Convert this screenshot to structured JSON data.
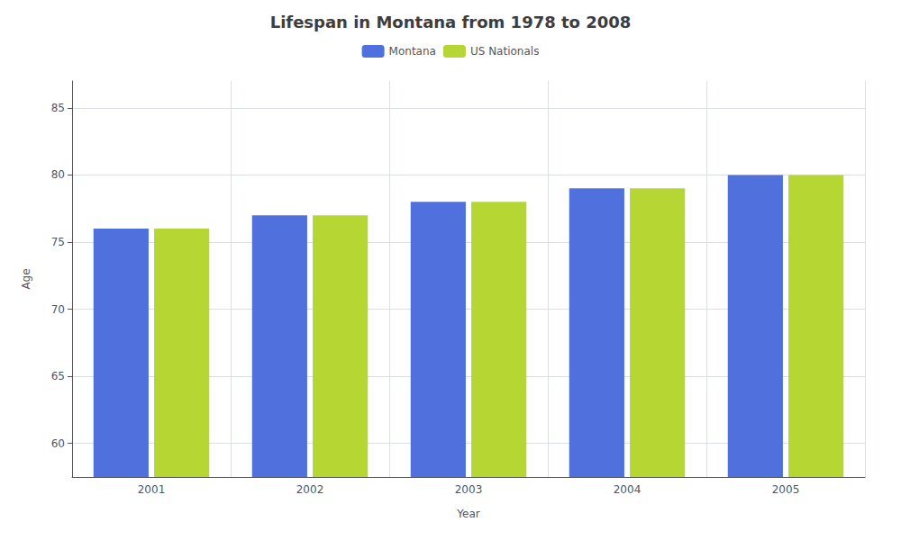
{
  "chart_data": {
    "type": "bar",
    "title": "Lifespan in Montana from 1978 to 2008",
    "xlabel": "Year",
    "ylabel": "Age",
    "categories": [
      "2001",
      "2002",
      "2003",
      "2004",
      "2005"
    ],
    "series": [
      {
        "name": "Montana",
        "values": [
          76,
          77,
          78,
          79,
          80
        ]
      },
      {
        "name": "US Nationals",
        "values": [
          76,
          77,
          78,
          79,
          80
        ]
      }
    ],
    "ylim": [
      57.5,
      87
    ],
    "yticks": [
      60,
      65,
      70,
      75,
      80,
      85
    ],
    "grid": true,
    "legend": "top"
  }
}
